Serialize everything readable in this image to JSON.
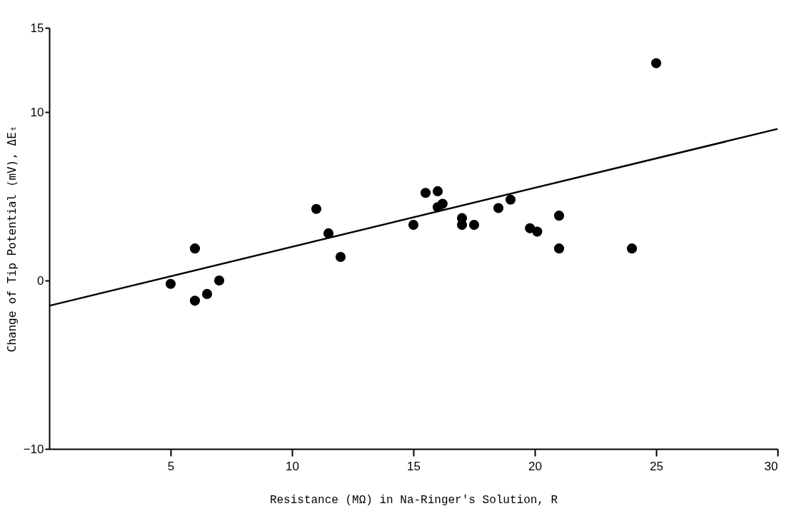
{
  "chart_data": {
    "type": "scatter",
    "xlabel": "Resistance (MΩ) in Na-Ringer's Solution, R",
    "ylabel": "Change of Tip Potential (mV), ΔEₜ",
    "xlim": [
      0,
      30
    ],
    "xticks": [
      5,
      10,
      15,
      20,
      25,
      30
    ],
    "ylim": [
      -10,
      15
    ],
    "yticks": [
      -10,
      0,
      10,
      15
    ],
    "grid": false,
    "marker": "circle",
    "series": [
      {
        "color": "#000000",
        "x": [
          5,
          6,
          6,
          6.5,
          7,
          11,
          11.5,
          12,
          15,
          15.5,
          16,
          16,
          16.2,
          17,
          17,
          17.5,
          18.5,
          19,
          19.8,
          20.1,
          21,
          21,
          24,
          25
        ],
        "values": [
          -0.2,
          1.9,
          -1.2,
          -0.8,
          0,
          4.25,
          2.8,
          1.4,
          3.3,
          5.2,
          5.3,
          4.35,
          4.55,
          3.7,
          3.3,
          3.3,
          4.3,
          4.8,
          3.1,
          2.9,
          3.85,
          1.9,
          1.9,
          12.9
        ]
      },
      {
        "type": "line",
        "color": "#000000",
        "marker": "none",
        "line_style": "solid",
        "x": [
          0,
          30
        ],
        "values": [
          -1.5,
          9.0
        ]
      }
    ]
  }
}
